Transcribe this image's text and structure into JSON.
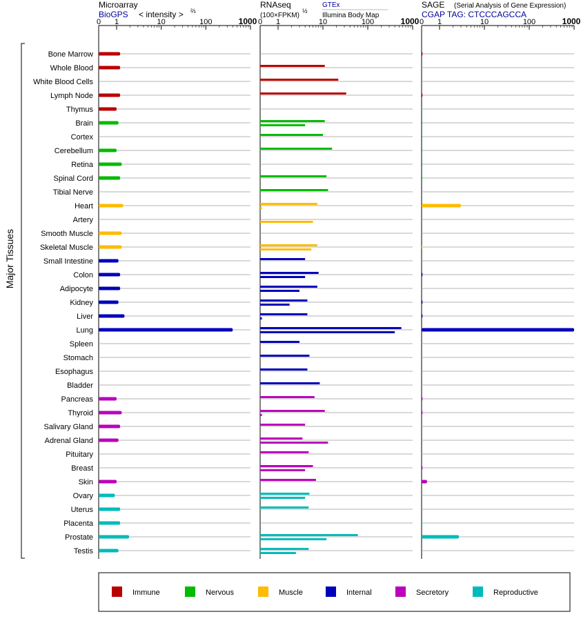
{
  "chart_data": {
    "type": "bar",
    "side_label": "Major Tissues",
    "tissues": [
      "Bone Marrow",
      "Whole Blood",
      "White Blood Cells",
      "Lymph Node",
      "Thymus",
      "Brain",
      "Cortex",
      "Cerebellum",
      "Retina",
      "Spinal Cord",
      "Tibial Nerve",
      "Heart",
      "Artery",
      "Smooth Muscle",
      "Skeletal Muscle",
      "Small Intestine",
      "Colon",
      "Adipocyte",
      "Kidney",
      "Liver",
      "Lung",
      "Spleen",
      "Stomach",
      "Esophagus",
      "Bladder",
      "Pancreas",
      "Thyroid",
      "Salivary Gland",
      "Adrenal Gland",
      "Pituitary",
      "Breast",
      "Skin",
      "Ovary",
      "Uterus",
      "Placenta",
      "Prostate",
      "Testis"
    ],
    "groups": [
      "Immune",
      "Immune",
      "Immune",
      "Immune",
      "Immune",
      "Nervous",
      "Nervous",
      "Nervous",
      "Nervous",
      "Nervous",
      "Nervous",
      "Muscle",
      "Muscle",
      "Muscle",
      "Muscle",
      "Internal",
      "Internal",
      "Internal",
      "Internal",
      "Internal",
      "Internal",
      "Internal",
      "Internal",
      "Internal",
      "Internal",
      "Secretory",
      "Secretory",
      "Secretory",
      "Secretory",
      "Secretory",
      "Secretory",
      "Secretory",
      "Reproductive",
      "Reproductive",
      "Reproductive",
      "Reproductive",
      "Reproductive"
    ],
    "axis_ticks": [
      "0",
      "1",
      "10",
      "100",
      "1000"
    ],
    "panels": [
      {
        "name": "Microarray",
        "subtitle": "BioGPS",
        "unit": "< intensity >",
        "unit_exponent": "⅔",
        "series": [
          {
            "name": "BioGPS",
            "values": [
              1.2,
              1.2,
              null,
              1.2,
              1.0,
              1.1,
              null,
              1.0,
              1.3,
              1.2,
              null,
              1.4,
              null,
              1.3,
              1.3,
              1.1,
              1.2,
              1.2,
              1.1,
              1.5,
              400,
              null,
              null,
              null,
              null,
              1.0,
              1.3,
              1.2,
              1.1,
              null,
              null,
              1.0,
              0.9,
              1.2,
              1.2,
              1.9,
              1.1
            ]
          }
        ]
      },
      {
        "name": "RNAseq",
        "subtitle": "(100×FPKM)",
        "unit_exponent": "½",
        "legend_top": "GTEx",
        "legend_bottom": "Illumina Body Map",
        "series": [
          {
            "name": "GTEx",
            "values": [
              null,
              11,
              22,
              33,
              null,
              11,
              10,
              16,
              null,
              12,
              13,
              7.5,
              null,
              null,
              7.5,
              4,
              8,
              7.5,
              4.5,
              4.5,
              560,
              3,
              5,
              4.5,
              8.5,
              6.5,
              11,
              4,
              3.5,
              4.8,
              6,
              7,
              5,
              4.8,
              null,
              60,
              4.8
            ]
          },
          {
            "name": "Illumina Body Map",
            "values": [
              null,
              null,
              null,
              null,
              null,
              4,
              null,
              null,
              null,
              null,
              null,
              0.1,
              6,
              null,
              5.5,
              null,
              4,
              3,
              1.8,
              0.1,
              400,
              null,
              null,
              null,
              null,
              null,
              0.1,
              null,
              13,
              null,
              4,
              null,
              4,
              null,
              null,
              12,
              2.5
            ]
          }
        ]
      },
      {
        "name": "SAGE",
        "subtitle": "CGAP TAG: CTCCCAGCCA",
        "note": "(Serial Analysis of Gene Expression)",
        "series": [
          {
            "name": "SAGE",
            "values": [
              0.05,
              null,
              null,
              0.05,
              null,
              0.02,
              0.02,
              0.02,
              0.02,
              0.02,
              null,
              3,
              null,
              null,
              0.02,
              null,
              0.05,
              null,
              0.05,
              0.05,
              1000,
              null,
              null,
              null,
              null,
              0.05,
              0.05,
              null,
              null,
              null,
              0.05,
              0.3,
              null,
              null,
              0.02,
              2.7,
              null
            ]
          }
        ]
      }
    ],
    "legend": [
      {
        "name": "Immune",
        "color": "#bb0000"
      },
      {
        "name": "Nervous",
        "color": "#00bb00"
      },
      {
        "name": "Muscle",
        "color": "#ffbb00"
      },
      {
        "name": "Internal",
        "color": "#0000bb"
      },
      {
        "name": "Secretory",
        "color": "#bb00bb"
      },
      {
        "name": "Reproductive",
        "color": "#00bbbb"
      }
    ],
    "subtitle_color": "#000099"
  }
}
